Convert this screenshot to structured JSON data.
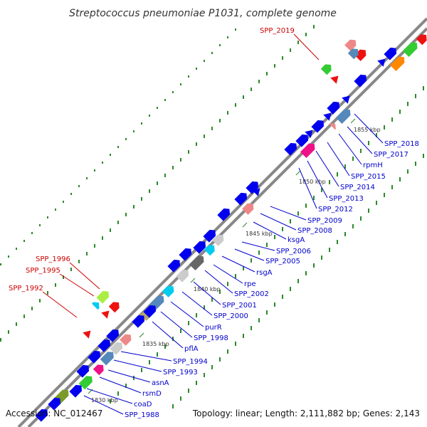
{
  "title": "Streptococcus pneumoniae P1031, complete genome",
  "footer": {
    "accession": "Accession: NC_012467",
    "summary": "Topology: linear; Length: 2,111,882 bp; Genes: 2,143"
  },
  "colors": {
    "backbone": "#888888",
    "gene_label": "#0000cc",
    "highlight_label": "#cc0000",
    "tick_mark": "#2a8a2a"
  },
  "scale_ticks": [
    "1830 kbp",
    "1835 kbp",
    "1840 kbp",
    "1845 kbp",
    "1850 kbp",
    "1855 kbp"
  ],
  "gene_labels": [
    "SPP_1988",
    "coaD",
    "rsmD",
    "asnA",
    "SPP_1993",
    "SPP_1994",
    "pflA",
    "SPP_1998",
    "purR",
    "SPP_2000",
    "SPP_2001",
    "SPP_2002",
    "rpe",
    "rsgA",
    "SPP_2005",
    "SPP_2006",
    "ksgA",
    "SPP_2008",
    "SPP_2009",
    "SPP_2012",
    "SPP_2013",
    "SPP_2014",
    "SPP_2015",
    "rpmH",
    "SPP_2017",
    "SPP_2018"
  ],
  "highlight_labels": [
    "SPP_1992",
    "SPP_1995",
    "SPP_1996",
    "SPP_2019"
  ]
}
